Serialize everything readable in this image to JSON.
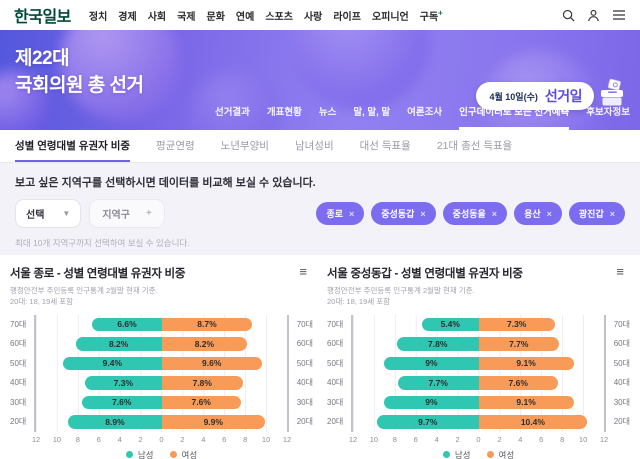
{
  "header": {
    "logo": "한국일보",
    "menu": [
      "정치",
      "경제",
      "사회",
      "국제",
      "문화",
      "연예",
      "스포츠",
      "사랑",
      "라이프",
      "오피니언"
    ],
    "subscribe": "구독",
    "subscribe_plus": "+"
  },
  "banner": {
    "title_line1": "제22대",
    "title_line2": "국회의원 총 선거",
    "badge_date": "4월 10일(수)",
    "badge_label": "선거일",
    "nav": [
      "선거결과",
      "개표현황",
      "뉴스",
      "말, 말, 말",
      "여론조사",
      "인구데이터로 보는 선거예측",
      "후보자정보"
    ],
    "active_nav_index": 5
  },
  "tabs": {
    "items": [
      "성별 연령대별 유권자 비중",
      "평균연령",
      "노년부양비",
      "남녀성비",
      "대선 득표율",
      "21대 총선 득표율"
    ],
    "active_index": 0
  },
  "filter": {
    "description": "보고 싶은 지역구를 선택하시면 데이터를 비교해 보실 수 있습니다.",
    "select_label": "선택",
    "select_chevron": "▼",
    "district_label": "지역구",
    "district_add": "+",
    "tags": [
      "종로",
      "중성동갑",
      "중성동을",
      "용산",
      "광진갑"
    ],
    "tag_close": "×",
    "hint": "최대 10개 지역구까지 선택하여 보실 수 있습니다."
  },
  "colors": {
    "male": "#2fc7b1",
    "female": "#f89b58",
    "accent_purple": "#7263e6",
    "tag_bg": "#7b6cf0",
    "logo_green": "#00483a"
  },
  "chart_data": [
    {
      "type": "bar",
      "orientation": "diverging-horizontal",
      "title": "서울 종로 - 성별 연령대별 유권자 비중",
      "subtitle1": "행정안전부 주민등록 인구통계 2월말 현재 기준.",
      "subtitle2": "20대: 18, 19세 포함",
      "menu_icon": "≡",
      "categories": [
        "70대",
        "60대",
        "50대",
        "40대",
        "30대",
        "20대"
      ],
      "series": [
        {
          "name": "남성",
          "values": [
            6.6,
            8.2,
            9.4,
            7.3,
            7.6,
            8.9
          ],
          "labels": [
            "6.6%",
            "8.2%",
            "9.4%",
            "7.3%",
            "7.6%",
            "8.9%"
          ]
        },
        {
          "name": "여성",
          "values": [
            8.7,
            8.2,
            9.6,
            7.8,
            7.6,
            9.9
          ],
          "labels": [
            "8.7%",
            "8.2%",
            "9.6%",
            "7.8%",
            "7.6%",
            "9.9%"
          ]
        }
      ],
      "x_ticks": [
        "12",
        "10",
        "8",
        "6",
        "4",
        "2",
        "0",
        "2",
        "4",
        "6",
        "8",
        "10",
        "12"
      ],
      "xlim": 12,
      "legend": [
        "남성",
        "여성"
      ],
      "legend_position": "bottom"
    },
    {
      "type": "bar",
      "orientation": "diverging-horizontal",
      "title": "서울 중성동갑 - 성별 연령대별 유권자 비중",
      "subtitle1": "행정안전부 주민등록 인구통계 2월말 현재 기준.",
      "subtitle2": "20대: 18, 19세 포함",
      "menu_icon": "≡",
      "categories": [
        "70대",
        "60대",
        "50대",
        "40대",
        "30대",
        "20대"
      ],
      "series": [
        {
          "name": "남성",
          "values": [
            5.4,
            7.8,
            9.0,
            7.7,
            9.0,
            9.7
          ],
          "labels": [
            "5.4%",
            "7.8%",
            "9%",
            "7.7%",
            "9%",
            "9.7%"
          ]
        },
        {
          "name": "여성",
          "values": [
            7.3,
            7.7,
            9.1,
            7.6,
            9.1,
            10.4
          ],
          "labels": [
            "7.3%",
            "7.7%",
            "9.1%",
            "7.6%",
            "9.1%",
            "10.4%"
          ]
        }
      ],
      "x_ticks": [
        "12",
        "10",
        "8",
        "6",
        "4",
        "2",
        "0",
        "2",
        "4",
        "6",
        "8",
        "10",
        "12"
      ],
      "xlim": 12,
      "legend": [
        "남성",
        "여성"
      ],
      "legend_position": "bottom"
    }
  ]
}
